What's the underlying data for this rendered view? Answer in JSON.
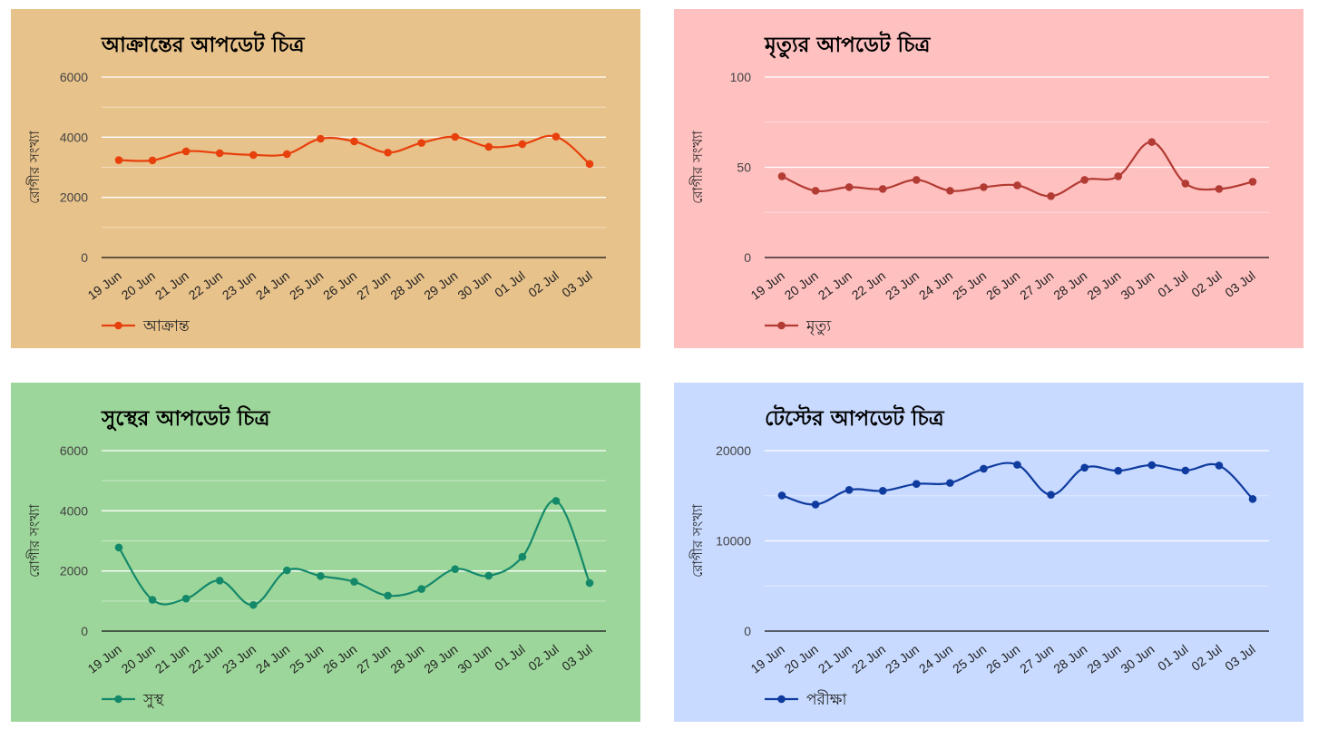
{
  "chart_data": [
    {
      "type": "line",
      "background": "#e8c28b",
      "color": "#e8400c",
      "title": "আক্রান্তের আপডেট চিত্র",
      "ylabel": "রোগীর সংখ্যা",
      "ylim": [
        0,
        6000
      ],
      "yticks": [
        "0",
        "2000",
        "4000",
        "6000"
      ],
      "yticks_v": [
        0,
        2000,
        4000,
        6000
      ],
      "x": [
        "19 Jun",
        "20 Jun",
        "21 Jun",
        "22 Jun",
        "23 Jun",
        "24 Jun",
        "25 Jun",
        "26 Jun",
        "27 Jun",
        "28 Jun",
        "29 Jun",
        "30 Jun",
        "01 Jul",
        "02 Jul",
        "03 Jul"
      ],
      "series": [
        {
          "name": "আক্রান্ত",
          "values": [
            3240,
            3230,
            3530,
            3470,
            3410,
            3440,
            3950,
            3860,
            3490,
            3810,
            4010,
            3680,
            3770,
            4020,
            3110
          ]
        }
      ],
      "legend": "bottom-left",
      "grid": true
    },
    {
      "type": "line",
      "background": "#ffc0c0",
      "color": "#b23b33",
      "title": "মৃত্যুর আপডেট চিত্র",
      "ylabel": "রোগীর সংখ্যা",
      "ylim": [
        0,
        100
      ],
      "yticks": [
        "0",
        "50",
        "100"
      ],
      "yticks_v": [
        0,
        50,
        100
      ],
      "x": [
        "19 Jun",
        "20 Jun",
        "21 Jun",
        "22 Jun",
        "23 Jun",
        "24 Jun",
        "25 Jun",
        "26 Jun",
        "27 Jun",
        "28 Jun",
        "29 Jun",
        "30 Jun",
        "01 Jul",
        "02 Jul",
        "03 Jul"
      ],
      "series": [
        {
          "name": "মৃত্যু",
          "values": [
            45,
            37,
            39,
            38,
            43,
            37,
            39,
            40,
            34,
            43,
            45,
            64,
            41,
            38,
            42
          ]
        }
      ],
      "legend": "bottom-left",
      "grid": true
    },
    {
      "type": "line",
      "background": "#9dd69a",
      "color": "#14896a",
      "title": "সুস্থের আপডেট চিত্র",
      "ylabel": "রোগীর সংখ্যা",
      "ylim": [
        0,
        6000
      ],
      "yticks": [
        "0",
        "2000",
        "4000",
        "6000"
      ],
      "yticks_v": [
        0,
        2000,
        4000,
        6000
      ],
      "x": [
        "19 Jun",
        "20 Jun",
        "21 Jun",
        "22 Jun",
        "23 Jun",
        "24 Jun",
        "25 Jun",
        "26 Jun",
        "27 Jun",
        "28 Jun",
        "29 Jun",
        "30 Jun",
        "01 Jul",
        "02 Jul",
        "03 Jul"
      ],
      "series": [
        {
          "name": "সুস্থ",
          "values": [
            2780,
            1040,
            1080,
            1680,
            870,
            2020,
            1830,
            1640,
            1180,
            1400,
            2060,
            1840,
            2470,
            4330,
            1600
          ]
        }
      ],
      "legend": "bottom-left",
      "grid": true
    },
    {
      "type": "line",
      "background": "#c8daff",
      "color": "#0f3b9f",
      "title": "টেস্টের আপডেট চিত্র",
      "ylabel": "রোগীর সংখ্যা",
      "ylim": [
        0,
        20000
      ],
      "yticks": [
        "0",
        "10000",
        "20000"
      ],
      "yticks_v": [
        0,
        10000,
        20000
      ],
      "x": [
        "19 Jun",
        "20 Jun",
        "21 Jun",
        "22 Jun",
        "23 Jun",
        "24 Jun",
        "25 Jun",
        "26 Jun",
        "27 Jun",
        "28 Jun",
        "29 Jun",
        "30 Jun",
        "01 Jul",
        "02 Jul",
        "03 Jul"
      ],
      "series": [
        {
          "name": "পরীক্ষা",
          "values": [
            15030,
            14030,
            15650,
            15550,
            16310,
            16420,
            18000,
            18430,
            15110,
            18110,
            17770,
            18400,
            17800,
            18350,
            14640
          ]
        }
      ],
      "legend": "bottom-left",
      "grid": true
    }
  ]
}
